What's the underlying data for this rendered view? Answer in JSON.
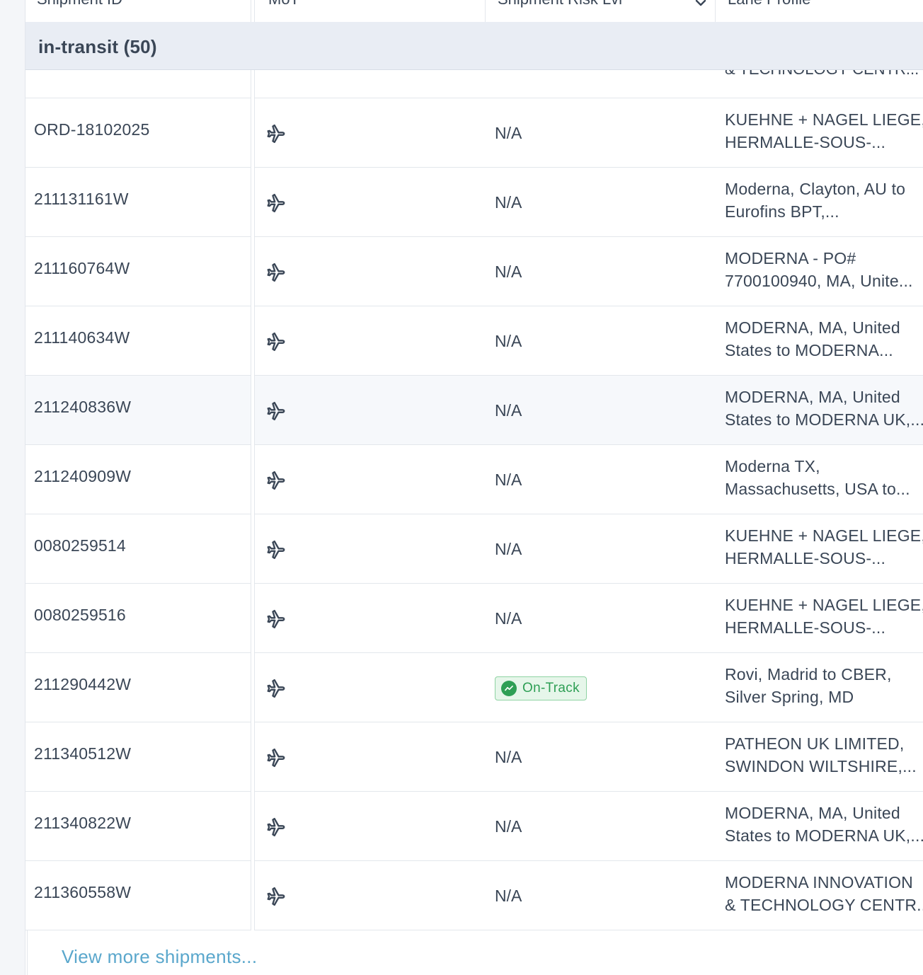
{
  "header": {
    "columns": [
      "Shipment ID",
      "MoT",
      "Shipment Risk Lvl",
      "Lane Profile"
    ]
  },
  "group": {
    "label": "in-transit (50)"
  },
  "partial_row": {
    "lane": "& TECHNOLOGY CENTR..."
  },
  "rows": [
    {
      "id": "ORD-18102025",
      "mot": "airplane-icon",
      "risk": "N/A",
      "lane1": "KUEHNE + NAGEL LIEGE,",
      "lane2": "HERMALLE-SOUS-..."
    },
    {
      "id": "211131161W",
      "mot": "airplane-icon",
      "risk": "N/A",
      "lane1": "Moderna, Clayton, AU to",
      "lane2": "Eurofins BPT,..."
    },
    {
      "id": "211160764W",
      "mot": "airplane-icon",
      "risk": "N/A",
      "lane1": "MODERNA - PO#",
      "lane2": "7700100940, MA, Unite..."
    },
    {
      "id": "211140634W",
      "mot": "airplane-icon",
      "risk": "N/A",
      "lane1": "MODERNA, MA, United",
      "lane2": "States to MODERNA..."
    },
    {
      "id": "211240836W",
      "mot": "airplane-icon",
      "risk": "N/A",
      "lane1": "MODERNA, MA, United",
      "lane2": "States to MODERNA UK,..."
    },
    {
      "id": "211240909W",
      "mot": "airplane-icon",
      "risk": "N/A",
      "lane1": "Moderna TX,",
      "lane2": "Massachusetts, USA to..."
    },
    {
      "id": "0080259514",
      "mot": "airplane-icon",
      "risk": "N/A",
      "lane1": "KUEHNE + NAGEL LIEGE,",
      "lane2": "HERMALLE-SOUS-..."
    },
    {
      "id": "0080259516",
      "mot": "airplane-icon",
      "risk": "N/A",
      "lane1": "KUEHNE + NAGEL LIEGE,",
      "lane2": "HERMALLE-SOUS-..."
    },
    {
      "id": "211290442W",
      "mot": "airplane-icon",
      "risk": "On-Track",
      "lane1": "Rovi, Madrid to CBER,",
      "lane2": "Silver Spring, MD"
    },
    {
      "id": "211340512W",
      "mot": "airplane-icon",
      "risk": "N/A",
      "lane1": "PATHEON UK LIMITED,",
      "lane2": "SWINDON WILTSHIRE,..."
    },
    {
      "id": "211340822W",
      "mot": "airplane-icon",
      "risk": "N/A",
      "lane1": "MODERNA, MA, United",
      "lane2": "States to MODERNA UK,..."
    },
    {
      "id": "211360558W",
      "mot": "airplane-icon",
      "risk": "N/A",
      "lane1": "MODERNA INNOVATION",
      "lane2": "& TECHNOLOGY CENTR..."
    }
  ],
  "footer": {
    "view_more": "View more shipments..."
  },
  "colors": {
    "accent_link": "#5aa7cc",
    "on_track_green": "#2e9f55",
    "group_bg": "#e9edf4"
  }
}
